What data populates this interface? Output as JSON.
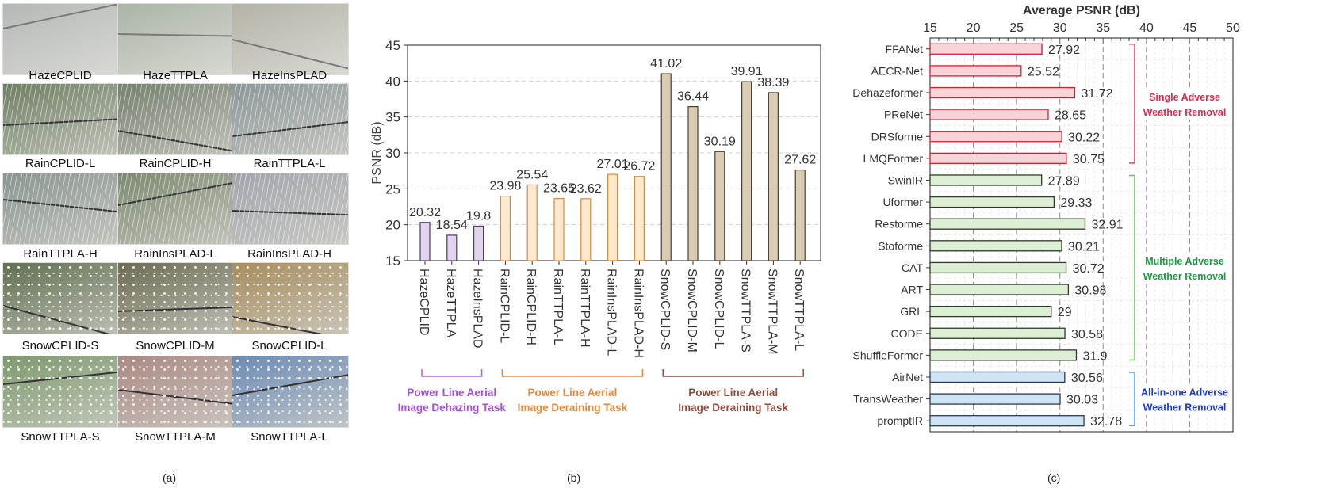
{
  "panel_a": {
    "tiles": [
      {
        "label": "HazeCPLID",
        "kind": "haze",
        "bg": "#8d938f"
      },
      {
        "label": "HazeTTPLA",
        "kind": "haze",
        "bg": "#7f8d77"
      },
      {
        "label": "HazeInsPLAD",
        "kind": "haze",
        "bg": "#8e8b79"
      },
      {
        "label": "RainCPLID-L",
        "kind": "rain",
        "bg": "#6f7e63"
      },
      {
        "label": "RainCPLID-H",
        "kind": "rain",
        "bg": "#76806e"
      },
      {
        "label": "RainTTPLA-L",
        "kind": "rain",
        "bg": "#8d9799"
      },
      {
        "label": "RainTTPLA-H",
        "kind": "rain",
        "bg": "#8a9590"
      },
      {
        "label": "RainInsPLAD-L",
        "kind": "rain",
        "bg": "#7d8a70"
      },
      {
        "label": "RainInsPLAD-H",
        "kind": "rain",
        "bg": "#a2a6ad"
      },
      {
        "label": "SnowCPLID-S",
        "kind": "snow",
        "bg": "#617051"
      },
      {
        "label": "SnowCPLID-M",
        "kind": "snow",
        "bg": "#6d6c52"
      },
      {
        "label": "SnowCPLID-L",
        "kind": "snow",
        "bg": "#a78d5d"
      },
      {
        "label": "SnowTTPLA-S",
        "kind": "snow",
        "bg": "#7e9a6e"
      },
      {
        "label": "SnowTTPLA-M",
        "kind": "snow",
        "bg": "#ab8a84"
      },
      {
        "label": "SnowTTPLA-L",
        "kind": "snow",
        "bg": "#6c8cb6"
      }
    ],
    "caption": "(a)"
  },
  "panel_b_caption": "(b)",
  "panel_c_caption": "(c)",
  "chart_data": [
    {
      "type": "bar",
      "ylabel": "PSNR (dB)",
      "ylim": [
        15,
        45
      ],
      "yticks": [
        15,
        20,
        25,
        30,
        35,
        40,
        45
      ],
      "grid": true,
      "categories": [
        "HazeCPLID",
        "HazeTTPLA",
        "HazeInsPLAD",
        "RainCPLID-L",
        "RainCPLID-H",
        "RainTTPLA-L",
        "RainTTPLA-H",
        "RainInsPLAD-L",
        "RainInsPLAD-H",
        "SnowCPLID-S",
        "SnowCPLID-M",
        "SnowCPLID-L",
        "SnowTTPLA-S",
        "SnowTTPLA-M",
        "SnowTTPLA-L"
      ],
      "values": [
        20.32,
        18.54,
        19.8,
        23.98,
        25.54,
        23.65,
        23.62,
        27.01,
        26.72,
        41.02,
        36.44,
        30.19,
        39.91,
        38.39,
        27.62
      ],
      "value_labels": [
        "20.32",
        "18.54",
        "19.8",
        "23.98",
        "25.54",
        "23.65",
        "23.62",
        "27.01",
        "26.72",
        "41.02",
        "36.44",
        "30.19",
        "39.91",
        "38.39",
        "27.62"
      ],
      "groups": [
        {
          "name": "Power Line Aerial Image Dehazing Task",
          "lines": [
            "Power Line Aerial",
            "Image Dehazing Task"
          ],
          "from": 0,
          "to": 2,
          "fill": "#e2d4ef",
          "stroke": "#4f3a6b",
          "text_color": "#a64de0",
          "bracket_color": "#b05be0"
        },
        {
          "name": "Power Line Aerial Image Deraining Task",
          "lines": [
            "Power Line Aerial",
            "Image Deraining Task"
          ],
          "from": 3,
          "to": 8,
          "fill": "#fde9cf",
          "stroke": "#d98a3a",
          "text_color": "#e8873a",
          "bracket_color": "#e8873a"
        },
        {
          "name": "Power Line Aerial Image Deraining Task",
          "lines": [
            "Power Line Aerial",
            "Image Deraining Task"
          ],
          "from": 9,
          "to": 14,
          "fill": "#d9ccb3",
          "stroke": "#4a4033",
          "text_color": "#8f4a3a",
          "bracket_color": "#8f4a3a"
        }
      ]
    },
    {
      "type": "bar",
      "orientation": "horizontal",
      "title": "Average PSNR (dB)",
      "xlim": [
        15,
        50
      ],
      "xticks": [
        15,
        20,
        25,
        30,
        35,
        40,
        45,
        50
      ],
      "grid": true,
      "categories": [
        "FFANet",
        "AECR-Net",
        "Dehazeformer",
        "PReNet",
        "DRSforme",
        "LMQFormer",
        "SwinIR",
        "Uformer",
        "Restorme",
        "Stoforme",
        "CAT",
        "ART",
        "GRL",
        "CODE",
        "ShuffleFormer",
        "AirNet",
        "TransWeather",
        "promptIR"
      ],
      "values": [
        27.92,
        25.52,
        31.72,
        28.65,
        30.22,
        30.75,
        27.89,
        29.33,
        32.91,
        30.21,
        30.72,
        30.98,
        29,
        30.58,
        31.9,
        30.56,
        30.03,
        32.78
      ],
      "value_labels": [
        "27.92",
        "25.52",
        "31.72",
        "28.65",
        "30.22",
        "30.75",
        "27.89",
        "29.33",
        "32.91",
        "30.21",
        "30.72",
        "30.98",
        "29",
        "30.58",
        "31.9",
        "30.56",
        "30.03",
        "32.78"
      ],
      "groups": [
        {
          "name": "Single Adverse Weather Removal",
          "lines": [
            "Single Adverse",
            "Weather Removal"
          ],
          "from": 0,
          "to": 5,
          "fill": "#f8d4d8",
          "stroke": "#cc2233",
          "text_color": "#e0284a",
          "bracket_color": "#e0405a"
        },
        {
          "name": "Multiple Adverse Weather Removal",
          "lines": [
            "Multiple Adverse",
            "Weather Removal"
          ],
          "from": 6,
          "to": 14,
          "fill": "#dcefd4",
          "stroke": "#2c3a28",
          "text_color": "#1a9a40",
          "bracket_color": "#6cc060"
        },
        {
          "name": "All-in-one Adverse Weather Removal",
          "lines": [
            "All-in-one Adverse",
            "Weather Removal"
          ],
          "from": 15,
          "to": 17,
          "fill": "#cfe4f4",
          "stroke": "#2c3a50",
          "text_color": "#1a38d8",
          "bracket_color": "#4aa0e0"
        }
      ]
    }
  ]
}
